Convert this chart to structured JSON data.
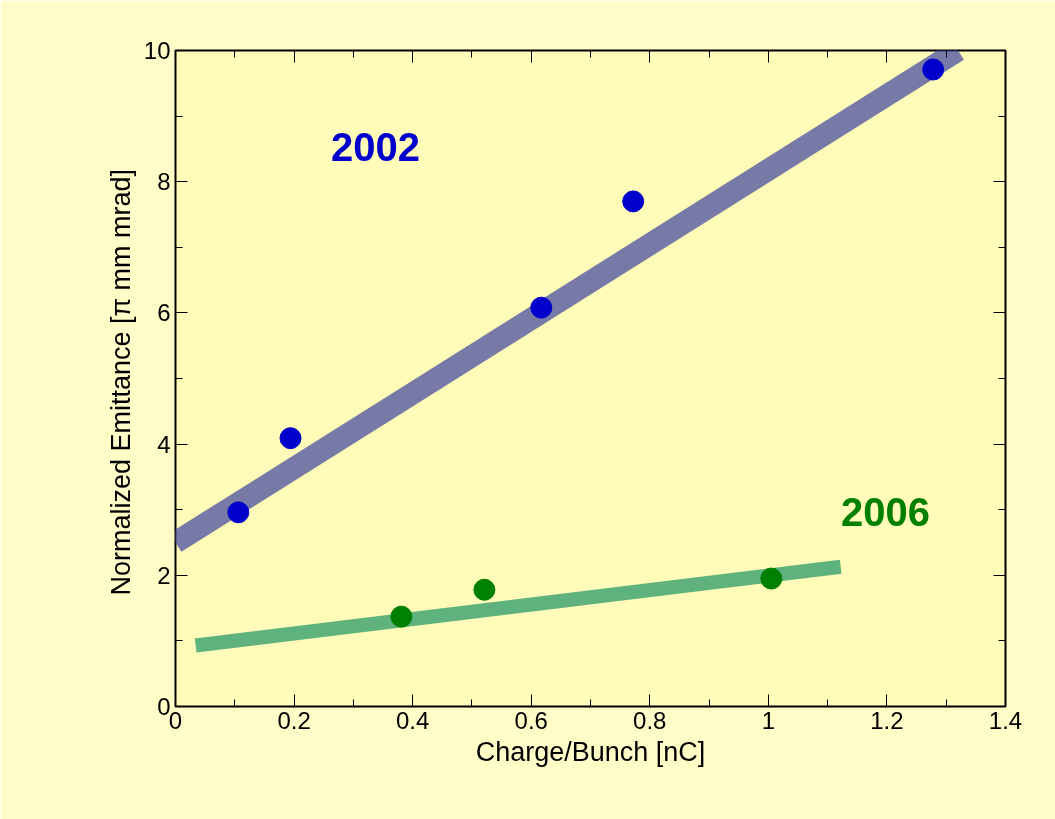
{
  "chart_data": {
    "type": "scatter",
    "xlabel": "Charge/Bunch [nC]",
    "ylabel": "Normalized Emittance  [π mm mrad]",
    "xlim": [
      0,
      1.4
    ],
    "xticks": [
      0,
      0.2,
      0.4,
      0.6,
      0.8,
      1,
      1.2,
      1.4
    ],
    "ylim": [
      0,
      10
    ],
    "yticks": [
      0,
      2,
      4,
      6,
      8,
      10
    ],
    "grid": false,
    "marker": "circle",
    "series": [
      {
        "color": "#0000cc",
        "x": [
          0.106,
          0.194,
          0.617,
          0.772,
          1.278
        ],
        "values": [
          2.96,
          4.09,
          6.08,
          7.7,
          9.71
        ]
      },
      {
        "color": "#008000",
        "x": [
          0.381,
          0.521,
          1.005
        ],
        "values": [
          1.37,
          1.78,
          1.95
        ]
      },
      {
        "type": "line",
        "marker": "none",
        "color": "#4a4fa0",
        "x": [
          0,
          1.32
        ],
        "values": [
          2.5,
          10
        ]
      },
      {
        "type": "line",
        "marker": "none",
        "color": "#2a9a6a",
        "x": [
          0.034,
          1.122
        ],
        "values": [
          0.93,
          2.13
        ]
      }
    ],
    "annotations": [
      "2002",
      "2006"
    ]
  }
}
